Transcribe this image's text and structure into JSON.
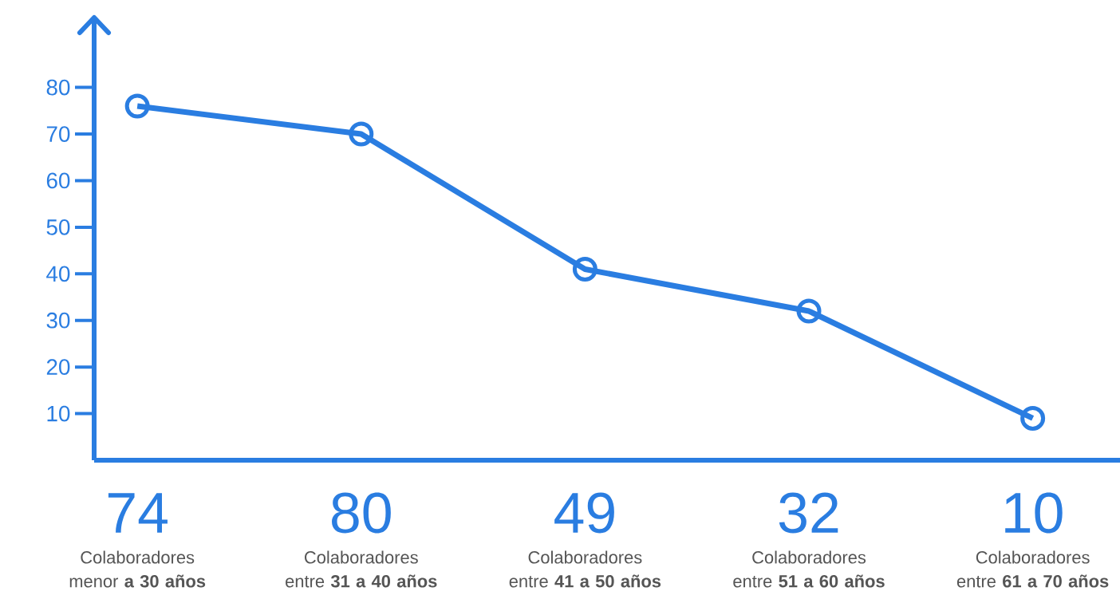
{
  "chart_data": {
    "type": "line",
    "categories": [
      "Colaboradores menor **a 30 años**",
      "Colaboradores entre **31 a 40 años**",
      "Colaboradores entre **41 a 50 años**",
      "Colaboradores entre **51 a 60 años**",
      "Colaboradores entre **61 a 70 años**"
    ],
    "values": [
      76,
      70,
      41,
      32,
      9
    ],
    "color": "#2a7de1",
    "marker": "circle",
    "ylim": [
      0,
      95
    ],
    "yticks": [
      10,
      20,
      30,
      40,
      50,
      60,
      70,
      80
    ],
    "annotations": [
      "74",
      "80",
      "49",
      "32",
      "10"
    ]
  }
}
